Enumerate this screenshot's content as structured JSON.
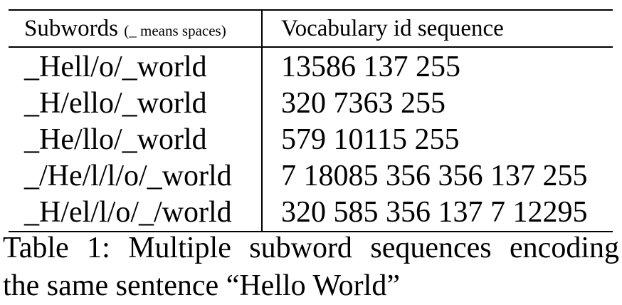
{
  "table": {
    "headers": {
      "subwords": "Subwords",
      "subwords_note": "(_ means spaces)",
      "ids": "Vocabulary id sequence"
    },
    "rows": [
      {
        "subwords": "_Hell/o/_world",
        "ids": "13586 137 255"
      },
      {
        "subwords": "_H/ello/_world",
        "ids": "320 7363 255"
      },
      {
        "subwords": "_He/llo/_world",
        "ids": "579 10115 255"
      },
      {
        "subwords": "_/He/l/l/o/_world",
        "ids": "7 18085 356 356 137 255"
      },
      {
        "subwords": "_H/el/l/o/_/world",
        "ids": "320 585 356 137 7 12295"
      }
    ]
  },
  "caption": {
    "line1": "Table 1:  Multiple subword sequences encoding",
    "line2": "the same sentence “Hello World”"
  }
}
